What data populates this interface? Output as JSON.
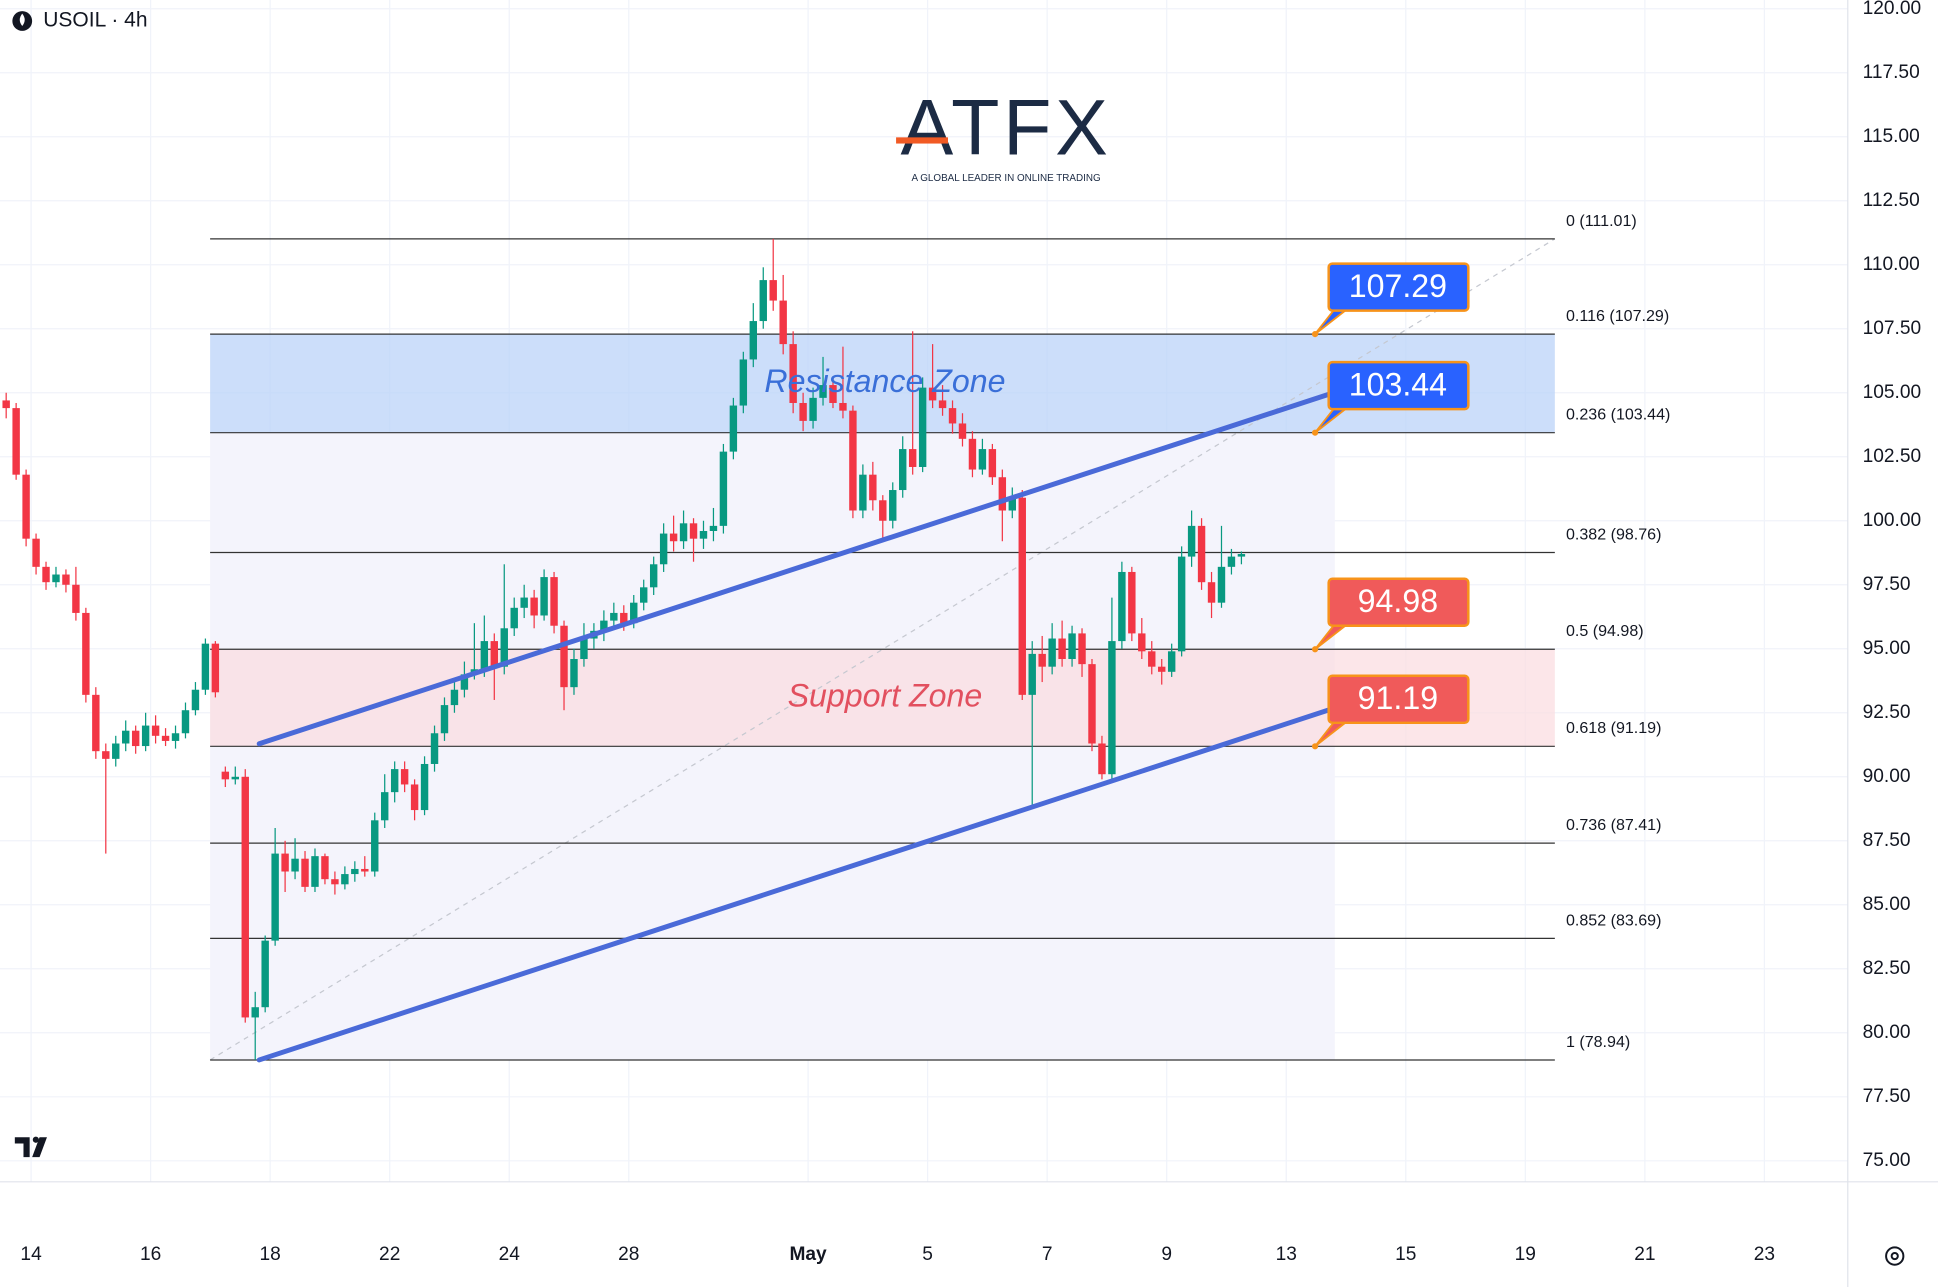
{
  "chart_data": {
    "type": "candlestick",
    "title": "USOIL · 4h",
    "logo": {
      "name": "ATFX",
      "tagline": "A GLOBAL LEADER IN ONLINE TRADING"
    },
    "up_color": "#089981",
    "down_color": "#f23645",
    "grid": true,
    "xlim": [
      -0.62,
      184.87
    ],
    "xticks": [
      {
        "value": 2.5,
        "label": "14"
      },
      {
        "value": 14.5,
        "label": "16"
      },
      {
        "value": 26.5,
        "label": "18"
      },
      {
        "value": 38.5,
        "label": "22"
      },
      {
        "value": 50.5,
        "label": "24"
      },
      {
        "value": 62.5,
        "label": "28"
      },
      {
        "value": 80.5,
        "label": "May"
      },
      {
        "value": 92.5,
        "label": "5"
      },
      {
        "value": 104.5,
        "label": "7"
      },
      {
        "value": 116.5,
        "label": "9"
      },
      {
        "value": 128.5,
        "label": "13"
      },
      {
        "value": 140.5,
        "label": "15"
      },
      {
        "value": 152.5,
        "label": "19"
      },
      {
        "value": 164.5,
        "label": "21"
      },
      {
        "value": 176.5,
        "label": "23"
      }
    ],
    "ylim": [
      74.18,
      120.34
    ],
    "yticks": [
      {
        "value": 75,
        "label": "75.00"
      },
      {
        "value": 77.5,
        "label": "77.50"
      },
      {
        "value": 80,
        "label": "80.00"
      },
      {
        "value": 82.5,
        "label": "82.50"
      },
      {
        "value": 85,
        "label": "85.00"
      },
      {
        "value": 87.5,
        "label": "87.50"
      },
      {
        "value": 90,
        "label": "90.00"
      },
      {
        "value": 92.5,
        "label": "92.50"
      },
      {
        "value": 95,
        "label": "95.00"
      },
      {
        "value": 97.5,
        "label": "97.50"
      },
      {
        "value": 100,
        "label": "100.00"
      },
      {
        "value": 102.5,
        "label": "102.50"
      },
      {
        "value": 105,
        "label": "105.00"
      },
      {
        "value": 107.5,
        "label": "107.50"
      },
      {
        "value": 110,
        "label": "110.00"
      },
      {
        "value": 112.5,
        "label": "112.50"
      },
      {
        "value": 115,
        "label": "115.00"
      },
      {
        "value": 117.5,
        "label": "117.50"
      },
      {
        "value": 120,
        "label": "120.00"
      }
    ],
    "x": [
      0,
      1,
      2,
      3,
      4,
      5,
      6,
      7,
      8,
      9,
      10,
      11,
      12,
      13,
      14,
      15,
      16,
      17,
      18,
      19,
      20,
      21,
      22,
      23,
      24,
      25,
      26,
      27,
      28,
      29,
      30,
      31,
      32,
      33,
      34,
      35,
      36,
      37,
      38,
      39,
      40,
      41,
      42,
      43,
      44,
      45,
      46,
      47,
      48,
      49,
      50,
      51,
      52,
      53,
      54,
      55,
      56,
      57,
      58,
      59,
      60,
      61,
      62,
      63,
      64,
      65,
      66,
      67,
      68,
      69,
      70,
      71,
      72,
      73,
      74,
      75,
      76,
      77,
      78,
      79,
      80,
      81,
      82,
      83,
      84,
      85,
      86,
      87,
      88,
      89,
      90,
      91,
      92,
      93,
      94,
      95,
      96,
      97,
      98,
      99,
      100,
      101,
      102,
      103,
      104,
      105,
      106,
      107,
      108,
      109,
      110,
      111,
      112,
      113,
      114,
      115,
      116,
      117,
      118,
      119,
      120,
      121,
      122,
      123,
      124
    ],
    "open": [
      104.7,
      104.4,
      101.8,
      99.3,
      98.2,
      97.6,
      97.9,
      97.5,
      96.4,
      93.2,
      91.0,
      90.7,
      91.3,
      91.8,
      91.2,
      92.0,
      91.6,
      91.4,
      91.7,
      92.6,
      93.4,
      95.2,
      90.2,
      89.9,
      90.0,
      80.6,
      81.0,
      83.6,
      87.0,
      86.3,
      86.8,
      85.7,
      86.9,
      86.0,
      85.8,
      86.2,
      86.4,
      86.3,
      88.3,
      89.4,
      90.3,
      89.7,
      88.7,
      90.5,
      91.7,
      92.8,
      93.4,
      94.0,
      94.2,
      95.3,
      94.3,
      95.8,
      96.6,
      97.0,
      96.3,
      97.8,
      95.9,
      93.5,
      94.6,
      95.4,
      95.7,
      96.1,
      96.4,
      96.0,
      96.8,
      97.4,
      98.3,
      99.5,
      99.2,
      99.9,
      99.3,
      99.6,
      99.8,
      102.7,
      104.5,
      106.3,
      107.8,
      109.4,
      108.6,
      106.9,
      104.6,
      103.9,
      104.8,
      105.3,
      104.6,
      104.3,
      100.4,
      101.8,
      100.8,
      100.0,
      101.2,
      102.8,
      102.1,
      105.2,
      104.7,
      104.4,
      103.8,
      103.2,
      102.0,
      102.8,
      101.7,
      100.4,
      100.9,
      93.2,
      94.8,
      94.3,
      95.4,
      94.6,
      95.6,
      94.4,
      91.3,
      90.1,
      95.3,
      98.0,
      95.6,
      94.9,
      94.3,
      94.1,
      94.9,
      98.6,
      99.8,
      97.6,
      96.8,
      98.2,
      98.6
    ],
    "high": [
      105.0,
      104.6,
      102.0,
      99.5,
      98.4,
      98.2,
      98.1,
      98.2,
      96.6,
      93.5,
      91.3,
      91.6,
      92.2,
      92.0,
      92.5,
      92.4,
      91.9,
      92.0,
      92.9,
      93.7,
      95.4,
      95.3,
      90.4,
      90.4,
      90.3,
      81.6,
      83.8,
      88.0,
      87.5,
      87.6,
      87.1,
      87.2,
      87.0,
      86.3,
      86.5,
      86.7,
      86.9,
      88.6,
      90.1,
      90.6,
      90.6,
      89.9,
      90.8,
      92.0,
      93.1,
      93.7,
      94.5,
      96.0,
      96.3,
      95.6,
      98.3,
      97.0,
      97.5,
      97.3,
      98.1,
      98.0,
      96.1,
      95.0,
      96.0,
      96.0,
      96.5,
      96.8,
      96.7,
      97.1,
      97.7,
      98.6,
      99.9,
      100.2,
      100.4,
      100.1,
      100.0,
      100.5,
      103.0,
      104.8,
      106.6,
      108.5,
      109.9,
      111.01,
      109.6,
      107.4,
      105.0,
      105.2,
      106.4,
      105.6,
      106.8,
      104.5,
      102.2,
      102.3,
      101.0,
      101.5,
      103.3,
      107.4,
      105.6,
      106.9,
      105.3,
      104.7,
      104.2,
      103.5,
      103.2,
      103.0,
      102.0,
      101.3,
      101.2,
      95.3,
      95.5,
      96.0,
      96.1,
      95.9,
      95.8,
      94.6,
      91.6,
      97.0,
      98.4,
      98.2,
      96.2,
      95.3,
      94.6,
      95.2,
      99.0,
      100.4,
      100.1,
      98.0,
      99.8,
      98.9,
      98.8
    ],
    "low": [
      104.0,
      101.6,
      99.0,
      97.9,
      97.3,
      97.4,
      97.2,
      96.1,
      92.9,
      90.7,
      87.0,
      90.4,
      91.0,
      90.9,
      91.0,
      91.3,
      91.2,
      91.1,
      91.5,
      92.4,
      93.2,
      93.1,
      89.6,
      89.7,
      80.4,
      78.94,
      80.8,
      83.4,
      85.5,
      86.0,
      85.5,
      85.5,
      85.8,
      85.4,
      85.6,
      85.9,
      86.1,
      86.1,
      88.0,
      89.0,
      89.4,
      88.3,
      88.5,
      90.2,
      91.4,
      92.5,
      93.1,
      93.8,
      93.9,
      93.0,
      94.0,
      95.5,
      96.2,
      95.8,
      96.1,
      95.6,
      92.6,
      93.2,
      94.3,
      95.0,
      95.3,
      95.8,
      95.7,
      95.8,
      96.5,
      97.1,
      98.0,
      98.8,
      98.9,
      98.4,
      98.9,
      99.2,
      99.5,
      102.4,
      104.2,
      106.0,
      107.5,
      108.2,
      106.5,
      104.2,
      103.5,
      103.6,
      104.5,
      104.4,
      104.0,
      100.1,
      100.1,
      100.4,
      99.2,
      99.7,
      100.9,
      101.8,
      101.9,
      104.4,
      104.1,
      103.4,
      102.9,
      101.7,
      101.8,
      101.4,
      99.2,
      100.1,
      93.0,
      88.8,
      93.7,
      94.0,
      94.3,
      94.3,
      93.9,
      91.0,
      89.9,
      89.9,
      95.0,
      95.3,
      94.6,
      94.0,
      93.6,
      93.9,
      94.7,
      98.2,
      97.3,
      96.2,
      96.6,
      97.9,
      98.3
    ],
    "close": [
      104.4,
      101.8,
      99.3,
      98.2,
      97.6,
      97.9,
      97.5,
      96.4,
      93.2,
      91.0,
      90.7,
      91.3,
      91.8,
      91.2,
      92.0,
      91.6,
      91.4,
      91.7,
      92.6,
      93.4,
      95.2,
      93.3,
      89.9,
      90.0,
      80.6,
      81.0,
      83.6,
      87.0,
      86.3,
      86.8,
      85.7,
      86.9,
      86.0,
      85.8,
      86.2,
      86.4,
      86.3,
      88.3,
      89.4,
      90.3,
      89.7,
      88.7,
      90.5,
      91.7,
      92.8,
      93.4,
      94.0,
      94.2,
      95.3,
      94.3,
      95.8,
      96.6,
      97.0,
      96.3,
      97.8,
      95.9,
      93.5,
      94.6,
      95.4,
      95.7,
      96.1,
      96.4,
      96.0,
      96.8,
      97.4,
      98.3,
      99.5,
      99.2,
      99.9,
      99.3,
      99.6,
      99.8,
      102.7,
      104.5,
      106.3,
      107.8,
      109.4,
      108.6,
      106.9,
      104.6,
      103.9,
      104.8,
      105.3,
      104.6,
      104.3,
      100.4,
      101.8,
      100.8,
      100.0,
      101.2,
      102.8,
      102.1,
      105.2,
      104.7,
      104.4,
      103.8,
      103.2,
      102.0,
      102.8,
      101.7,
      100.4,
      100.9,
      93.2,
      94.8,
      94.3,
      95.4,
      94.6,
      95.6,
      94.4,
      91.3,
      90.1,
      95.3,
      98.0,
      95.6,
      94.9,
      94.3,
      94.1,
      94.9,
      98.6,
      99.8,
      97.6,
      96.8,
      98.2,
      98.6,
      98.7
    ],
    "fib_levels": [
      {
        "value": 111.01,
        "label": "0 (111.01)"
      },
      {
        "value": 107.29,
        "label": "0.116 (107.29)"
      },
      {
        "value": 103.44,
        "label": "0.236 (103.44)"
      },
      {
        "value": 98.76,
        "label": "0.382 (98.76)"
      },
      {
        "value": 94.98,
        "label": "0.5 (94.98)"
      },
      {
        "value": 91.19,
        "label": "0.618 (91.19)"
      },
      {
        "value": 87.41,
        "label": "0.736 (87.41)"
      },
      {
        "value": 83.69,
        "label": "0.852 (83.69)"
      },
      {
        "value": 78.94,
        "label": "1 (78.94)"
      }
    ],
    "zones": [
      {
        "label": "Resistance Zone",
        "from": 103.44,
        "to": 107.29,
        "color": "#bbd3f8",
        "text_color": "#3a6fd8"
      },
      {
        "label": "Support Zone",
        "from": 91.19,
        "to": 94.98,
        "color": "#fbdde1",
        "text_color": "#e2505f"
      }
    ],
    "callouts": [
      {
        "value": 107.29,
        "color": "#2962ff"
      },
      {
        "value": 103.44,
        "color": "#2962ff"
      },
      {
        "value": 94.98,
        "color": "#f05a5a"
      },
      {
        "value": 91.19,
        "color": "#f05a5a"
      }
    ],
    "trendlines": [
      {
        "x": [
          25.4,
          133.4
        ],
        "y": [
          91.29,
          105.02
        ],
        "color": "#4a6ad8"
      },
      {
        "x": [
          25.4,
          133.4
        ],
        "y": [
          78.94,
          92.69
        ],
        "color": "#4a6ad8"
      }
    ]
  }
}
